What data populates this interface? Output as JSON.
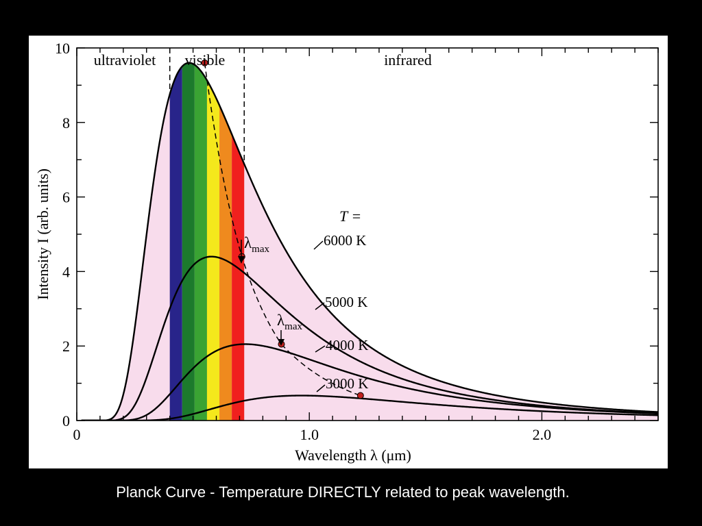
{
  "caption": "Planck Curve - Temperature DIRECTLY related to peak wavelength.",
  "colors": {
    "background": "#000000",
    "panel": "#ffffff",
    "envelope_fill": "#f8dcec",
    "spectrum": [
      "#28248a",
      "#1c7a2c",
      "#3aa333",
      "#f4e81c",
      "#ef8a1e",
      "#f0201e"
    ],
    "peak_marker": "#c0201e",
    "curve": "#000000"
  },
  "chart_data": {
    "type": "line",
    "title": "",
    "xlabel": "Wavelength λ (μm)",
    "ylabel": "Intensity I (arb. units)",
    "xlim": [
      0,
      2.5
    ],
    "ylim": [
      0,
      10
    ],
    "x_ticks": [
      {
        "value": 0,
        "label": "0"
      },
      {
        "value": 1.0,
        "label": "1.0"
      },
      {
        "value": 2.0,
        "label": "2.0"
      }
    ],
    "y_ticks": [
      {
        "value": 0,
        "label": "0"
      },
      {
        "value": 2,
        "label": "2"
      },
      {
        "value": 4,
        "label": "4"
      },
      {
        "value": 6,
        "label": "6"
      },
      {
        "value": 8,
        "label": "8"
      },
      {
        "value": 10,
        "label": "10"
      }
    ],
    "regions": [
      {
        "label": "ultraviolet",
        "x_start": 0,
        "x_end": 0.4
      },
      {
        "label": "visible",
        "x_start": 0.4,
        "x_end": 0.72
      },
      {
        "label": "infrared",
        "x_start": 0.72,
        "x_end": 2.5
      }
    ],
    "legend_heading": "T =",
    "series": [
      {
        "name": "6000 K",
        "temperature_K": 6000,
        "peak": {
          "x": 0.55,
          "y": 9.6
        }
      },
      {
        "name": "5000 K",
        "temperature_K": 5000,
        "peak": {
          "x": 0.71,
          "y": 4.4
        }
      },
      {
        "name": "4000 K",
        "temperature_K": 4000,
        "peak": {
          "x": 0.88,
          "y": 2.05
        }
      },
      {
        "name": "3000 K",
        "temperature_K": 3000,
        "peak": {
          "x": 1.22,
          "y": 0.67
        }
      }
    ],
    "annotations": [
      {
        "text": "λ",
        "sub": "max",
        "points_to_series": "5000 K"
      },
      {
        "text": "λ",
        "sub": "max",
        "points_to_series": "4000 K"
      }
    ],
    "grid": false,
    "peak_trace": "dashed"
  }
}
